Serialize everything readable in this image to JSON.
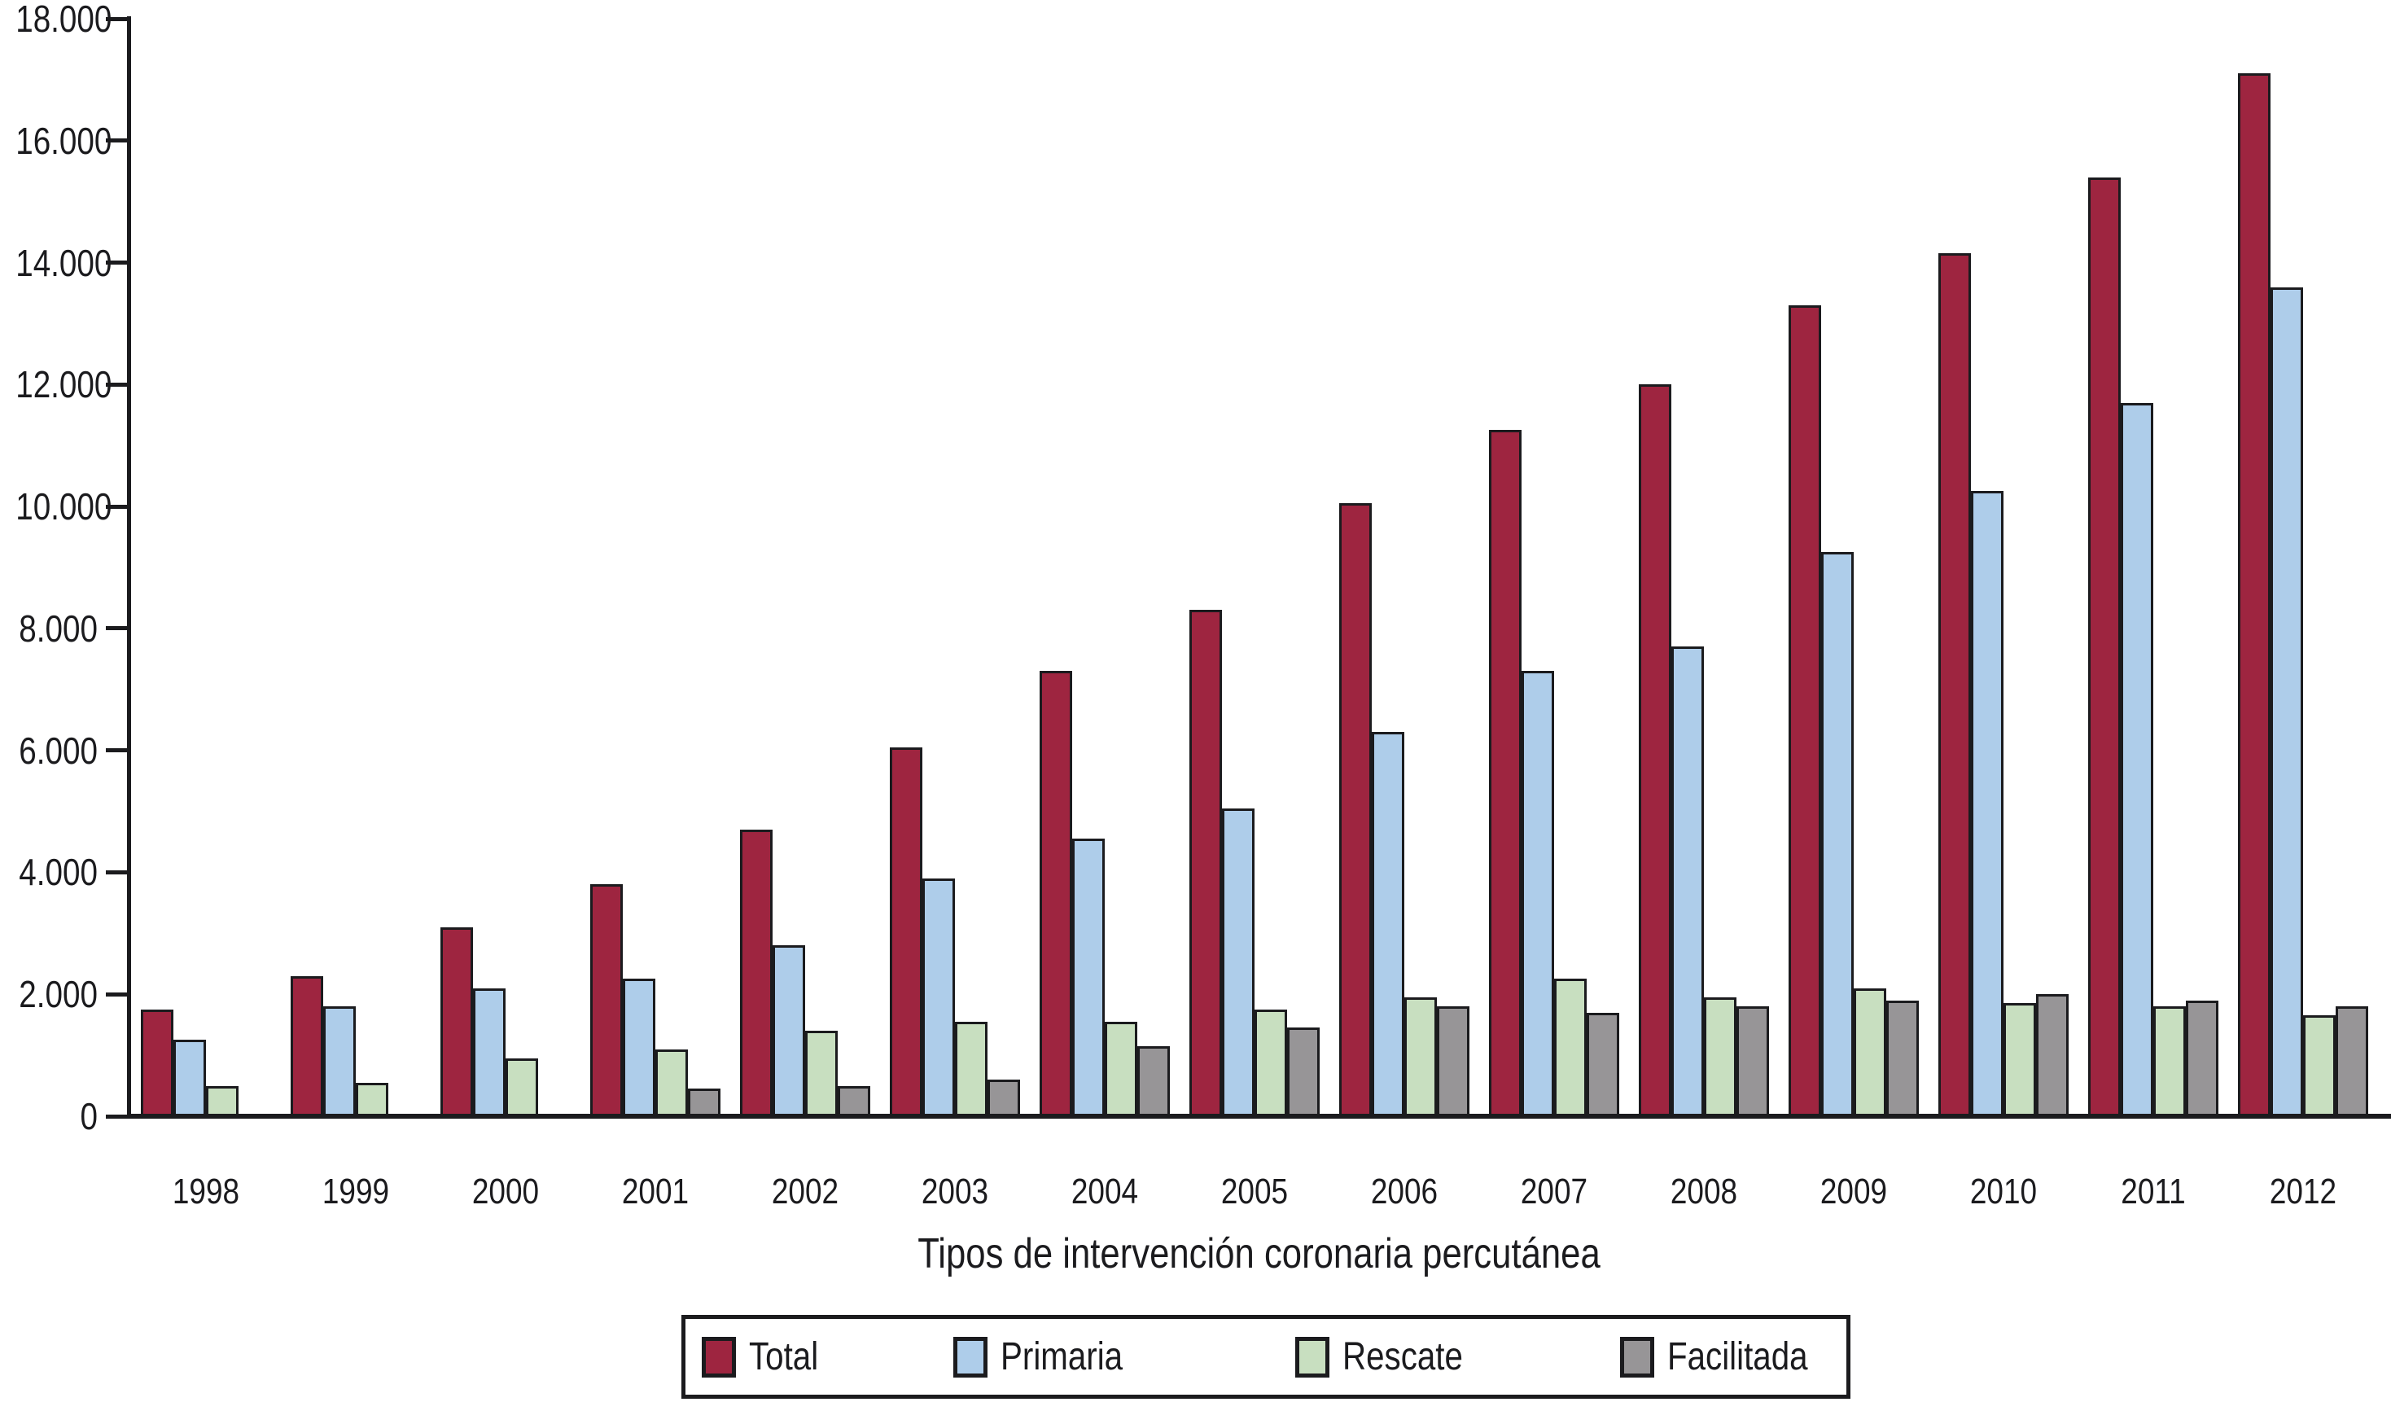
{
  "colors": {
    "ink": "#1b1b1e",
    "background": "#ffffff",
    "total": "#9e2540",
    "primaria": "#aecdea",
    "rescate": "#c8dfc0",
    "facilitada": "#979597"
  },
  "chart_data": {
    "type": "bar",
    "title": "Tipos de intervención coronaria percutánea",
    "xlabel": "Tipos de intervención coronaria percutánea",
    "ylabel": "",
    "ylim": [
      0,
      18000
    ],
    "grid": false,
    "legend_position": "bottom",
    "categories": [
      "1998",
      "1999",
      "2000",
      "2001",
      "2002",
      "2003",
      "2004",
      "2005",
      "2006",
      "2007",
      "2008",
      "2009",
      "2010",
      "2011",
      "2012"
    ],
    "y_ticks": [
      {
        "value": 18000,
        "label": "18.000"
      },
      {
        "value": 16000,
        "label": "16.000"
      },
      {
        "value": 14000,
        "label": "14.000"
      },
      {
        "value": 12000,
        "label": "12.000"
      },
      {
        "value": 10000,
        "label": "10.000"
      },
      {
        "value": 8000,
        "label": "8.000"
      },
      {
        "value": 6000,
        "label": "6.000"
      },
      {
        "value": 4000,
        "label": "4.000"
      },
      {
        "value": 2000,
        "label": "2.000"
      },
      {
        "value": 0,
        "label": "0"
      }
    ],
    "series": [
      {
        "name": "Total",
        "key": "total",
        "color": "#9e2540",
        "values": [
          1750,
          2300,
          3100,
          3800,
          4700,
          6050,
          7300,
          8300,
          10050,
          11250,
          12000,
          13300,
          14150,
          15400,
          17100
        ]
      },
      {
        "name": "Primaria",
        "key": "primaria",
        "color": "#aecdea",
        "values": [
          1250,
          1800,
          2100,
          2250,
          2800,
          3900,
          4550,
          5050,
          6300,
          7300,
          7700,
          9250,
          10250,
          11700,
          13600
        ]
      },
      {
        "name": "Rescate",
        "key": "rescate",
        "color": "#c8dfc0",
        "values": [
          500,
          550,
          950,
          1100,
          1400,
          1550,
          1550,
          1750,
          1950,
          2250,
          1950,
          2100,
          1850,
          1800,
          1650
        ]
      },
      {
        "name": "Facilitada",
        "key": "facilitada",
        "color": "#979597",
        "values": [
          null,
          null,
          null,
          450,
          500,
          600,
          1150,
          1450,
          1800,
          1700,
          1800,
          1900,
          2000,
          1900,
          1800
        ]
      }
    ]
  }
}
